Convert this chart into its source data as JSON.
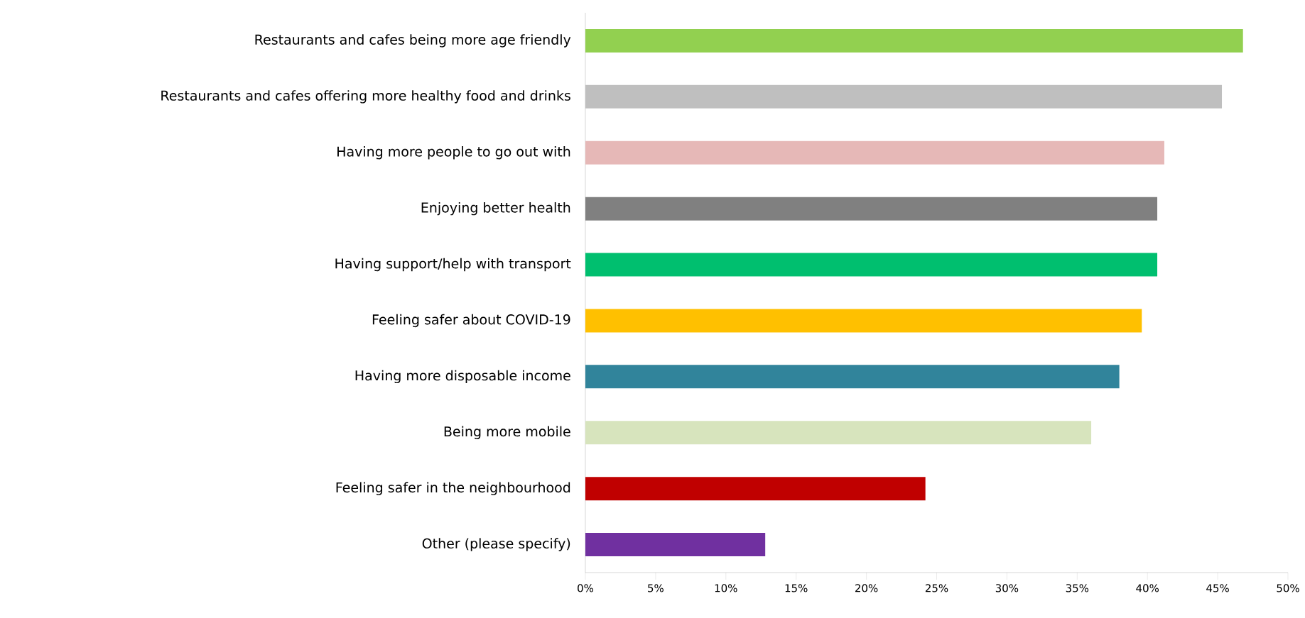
{
  "chart_data": {
    "type": "bar",
    "orientation": "horizontal",
    "categories": [
      "Restaurants and cafes being more age friendly",
      "Restaurants and cafes offering more healthy food and drinks",
      "Having more people to go out with",
      "Enjoying better health",
      "Having support/help with transport",
      "Feeling safer about COVID-19",
      "Having more disposable income",
      "Being more mobile",
      "Feeling safer in the neighbourhood",
      "Other (please specify)"
    ],
    "values": [
      46.8,
      45.3,
      41.2,
      40.7,
      40.7,
      39.6,
      38.0,
      36.0,
      24.2,
      12.8
    ],
    "colors": [
      "#92d050",
      "#bfbfbf",
      "#e6b8b7",
      "#808080",
      "#00bf6f",
      "#ffc000",
      "#31849b",
      "#d7e4bd",
      "#c00000",
      "#7030a0"
    ],
    "xlim": [
      0,
      50
    ],
    "xticks": [
      {
        "value": 0,
        "label": "0%"
      },
      {
        "value": 5,
        "label": "5%"
      },
      {
        "value": 10,
        "label": "10%"
      },
      {
        "value": 15,
        "label": "15%"
      },
      {
        "value": 20,
        "label": "20%"
      },
      {
        "value": 25,
        "label": "25%"
      },
      {
        "value": 30,
        "label": "30%"
      },
      {
        "value": 35,
        "label": "35%"
      },
      {
        "value": 40,
        "label": "40%"
      },
      {
        "value": 45,
        "label": "45%"
      },
      {
        "value": 50,
        "label": "50%"
      }
    ],
    "grid": false,
    "legend": false
  }
}
